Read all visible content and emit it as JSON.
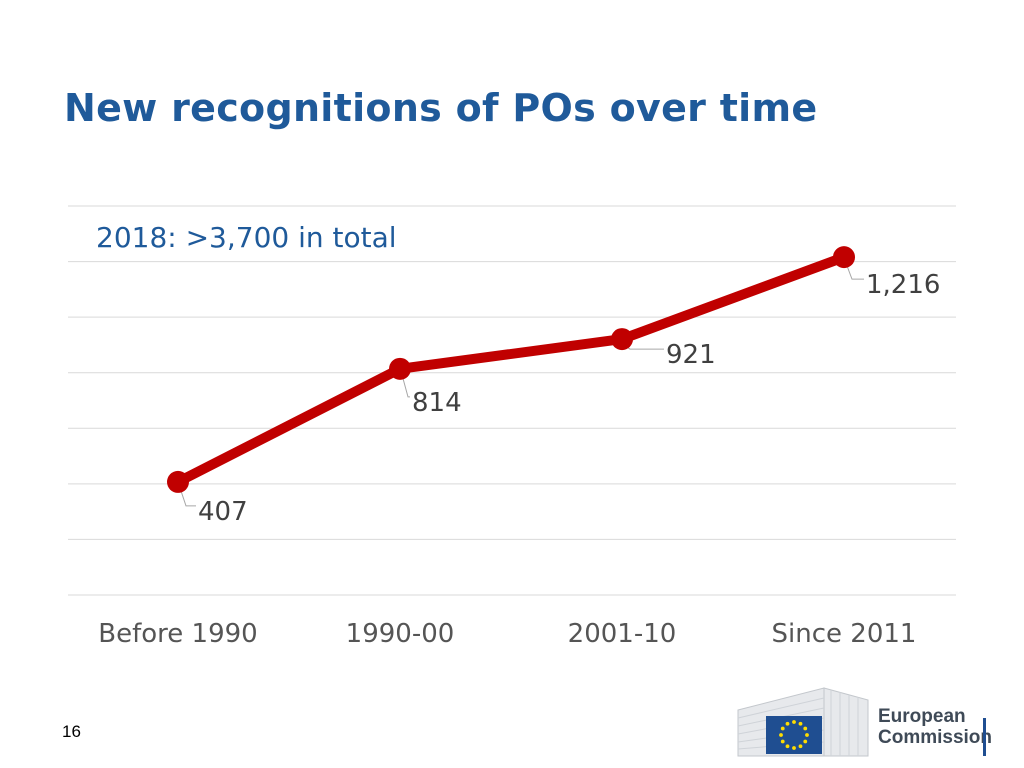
{
  "slide": {
    "title": "New recognitions of POs over time",
    "page_number": "16"
  },
  "logo": {
    "line1": "European",
    "line2": "Commission"
  },
  "chart_data": {
    "type": "line",
    "title": "",
    "annotation": "2018: >3,700 in total",
    "categories": [
      "Before 1990",
      "1990-00",
      "2001-10",
      "Since 2011"
    ],
    "series": [
      {
        "values": [
          407,
          814,
          921,
          1216
        ],
        "data_labels": [
          "407",
          "814",
          "921",
          "1,216"
        ],
        "color": "#c00000"
      }
    ],
    "ylim": [
      0,
      1400
    ],
    "y_grid_step": 200,
    "grid": true,
    "legend": "none",
    "colors": {
      "line": "#c00000",
      "grid": "#d9d9d9",
      "annotation": "#1f5a9a",
      "tick_text": "#555555",
      "label_text": "#404040",
      "leader": "#a6a6a6"
    }
  }
}
